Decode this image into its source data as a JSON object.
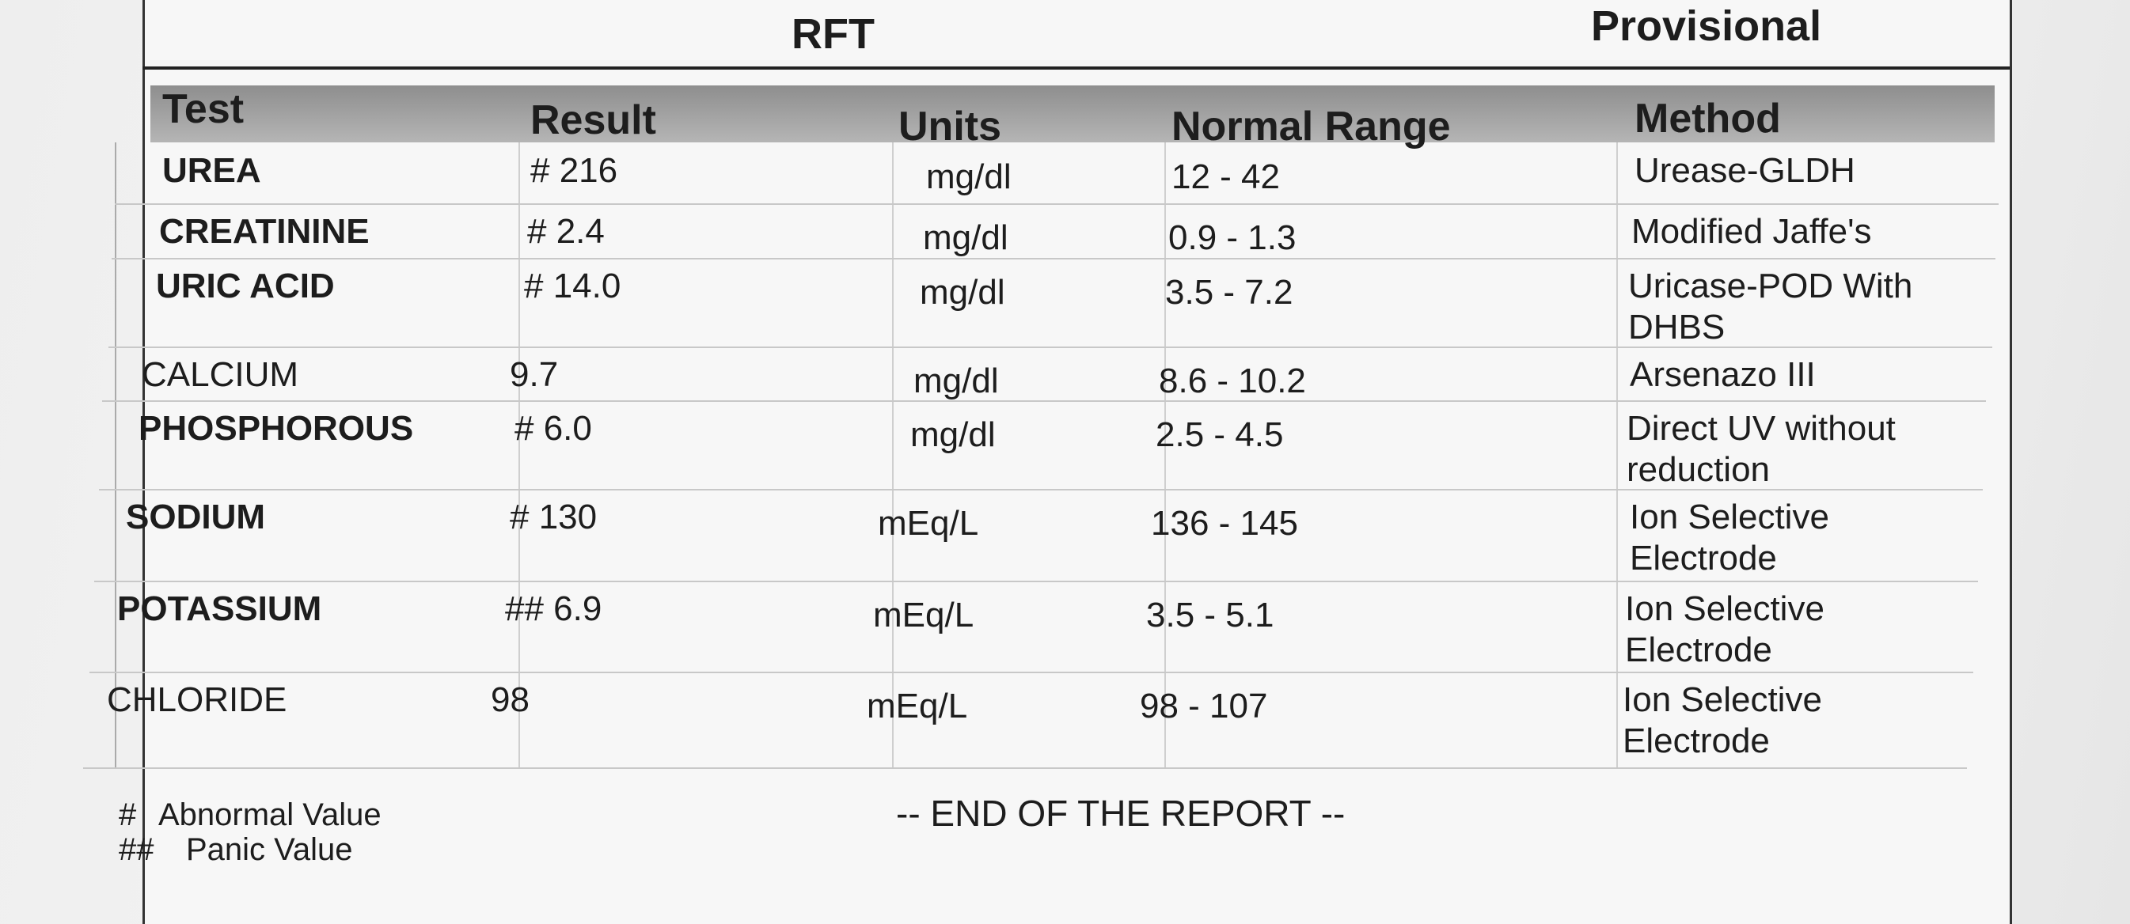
{
  "header": {
    "title": "RFT",
    "status": "Provisional"
  },
  "table": {
    "columns": [
      "Test",
      "Result",
      "Units",
      "Normal Range",
      "Method"
    ],
    "rows": [
      [
        "UREA",
        "# 216",
        "mg/dl",
        "12 - 42",
        "Urease-GLDH"
      ],
      [
        "CREATININE",
        "# 2.4",
        "mg/dl",
        "0.9 - 1.3",
        "Modified Jaffe's"
      ],
      [
        "URIC ACID",
        "# 14.0",
        "mg/dl",
        "3.5 - 7.2",
        "Uricase-POD With DHBS"
      ],
      [
        "CALCIUM",
        "9.7",
        "mg/dl",
        "8.6 - 10.2",
        "Arsenazo III"
      ],
      [
        "PHOSPHOROUS",
        "# 6.0",
        "mg/dl",
        "2.5 - 4.5",
        "Direct UV without reduction"
      ],
      [
        "SODIUM",
        "# 130",
        "mEq/L",
        "136 - 145",
        "Ion Selective Electrode"
      ],
      [
        "POTASSIUM",
        "## 6.9",
        "mEq/L",
        "3.5 - 5.1",
        "Ion Selective Electrode"
      ],
      [
        "CHLORIDE",
        "98",
        "mEq/L",
        "98 - 107",
        "Ion Selective Electrode"
      ]
    ]
  },
  "legend": [
    {
      "symbol": "#",
      "label": "Abnormal Value"
    },
    {
      "symbol": "##",
      "label": "Panic Value"
    }
  ],
  "footer": "-- END OF THE REPORT --"
}
